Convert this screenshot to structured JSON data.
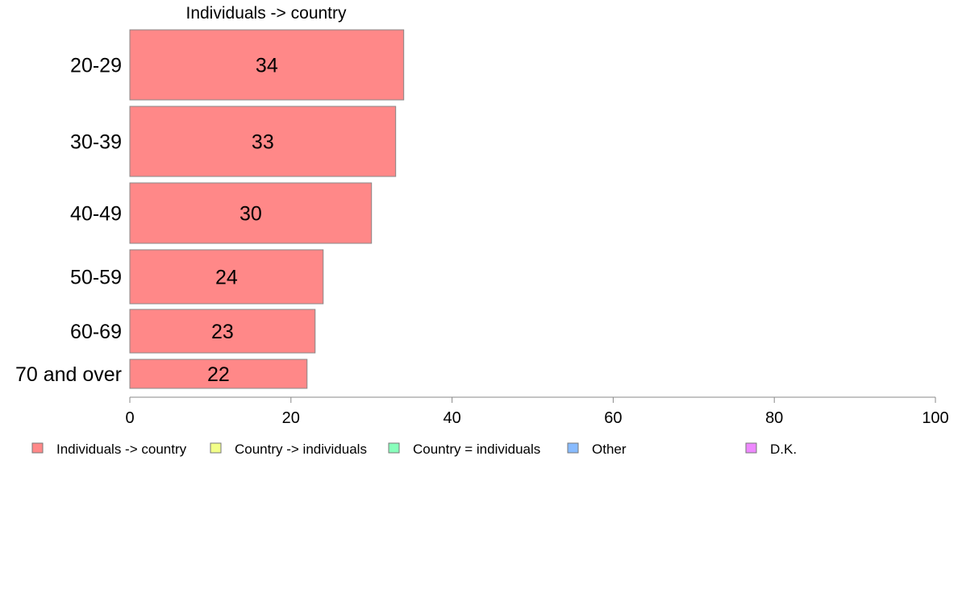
{
  "chart_data": {
    "type": "bar",
    "orientation": "horizontal",
    "title": "Individuals -> country",
    "categories": [
      "20-29",
      "30-39",
      "40-49",
      "50-59",
      "60-69",
      "70 and over"
    ],
    "series": [
      {
        "name": "Individuals -> country",
        "values": [
          34,
          33,
          30,
          24,
          23,
          22
        ],
        "color": "#ff8888"
      }
    ],
    "xlim": [
      0,
      100
    ],
    "xticks": [
      "0",
      "20",
      "40",
      "60",
      "80",
      "100"
    ],
    "grid": false,
    "legend": {
      "placement": "bottom",
      "entries": [
        {
          "label": "Individuals -> country",
          "color": "#ff8888"
        },
        {
          "label": "Country -> individuals",
          "color": "#f2ff88"
        },
        {
          "label": "Country = individuals",
          "color": "#88ffbb"
        },
        {
          "label": "Other",
          "color": "#88bbff"
        },
        {
          "label": "D.K.",
          "color": "#ee88ff"
        }
      ]
    }
  }
}
